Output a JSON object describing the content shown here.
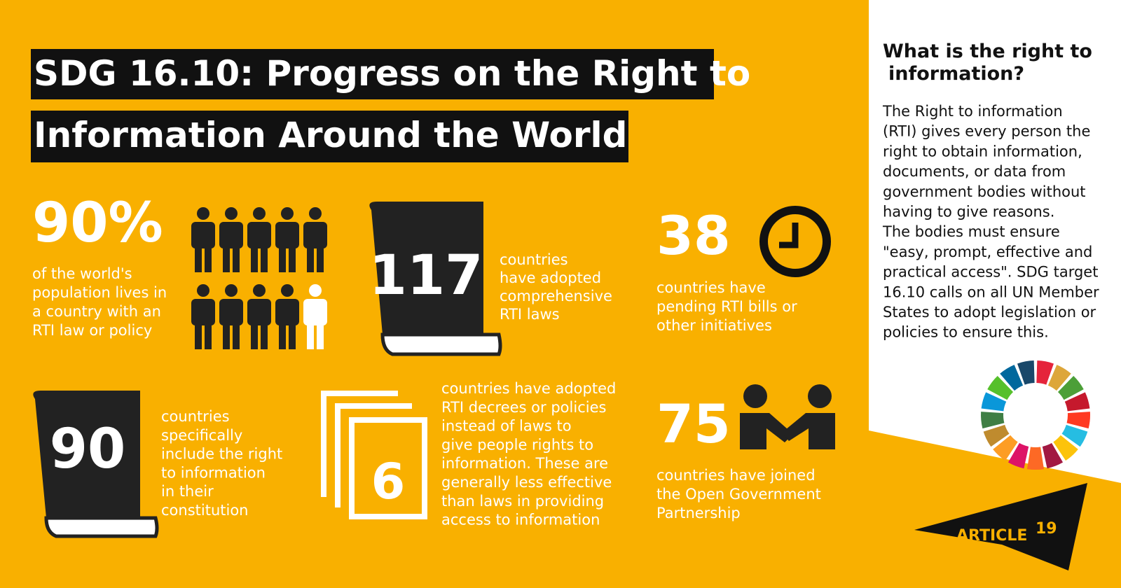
{
  "title": [
    "SDG 16.10: Progress on the Right to",
    "Information Around the World"
  ],
  "stats": [
    {
      "figure": "90%",
      "text": [
        "of the world's",
        "population lives in",
        "a country with an",
        "RTI law or policy"
      ]
    },
    {
      "figure": "117",
      "text": [
        "countries",
        "have adopted",
        "comprehensive",
        "RTI laws"
      ]
    },
    {
      "figure": "38",
      "text": [
        "countries have",
        "pending RTI bills or",
        "other initiatives"
      ]
    },
    {
      "figure": "90",
      "text": [
        "countries",
        "specifically",
        "include the right",
        "to information",
        "in their",
        "constitution"
      ]
    },
    {
      "figure": "6",
      "text": [
        "countries have adopted",
        "RTI decrees or policies",
        "instead of laws to",
        "give people rights to",
        "information. These are",
        "generally less effective",
        "than laws in providing",
        "access to information"
      ]
    },
    {
      "figure": "75",
      "text": [
        "countries have joined",
        "the Open Government",
        "Partnership"
      ]
    }
  ],
  "sidebar": {
    "heading": [
      "What is the right to",
      "information?"
    ],
    "body": [
      "The Right to information",
      "(RTI) gives every person the",
      "right to obtain information,",
      "documents, or data from",
      "government bodies without",
      "having to give reasons.",
      "The bodies must ensure",
      "\"easy, prompt, effective and",
      "practical access\". SDG target",
      "16.10 calls on all UN Member",
      "States to adopt legislation or",
      "policies to ensure this."
    ]
  },
  "logo": {
    "name": "ARTICLE",
    "number": "19"
  }
}
